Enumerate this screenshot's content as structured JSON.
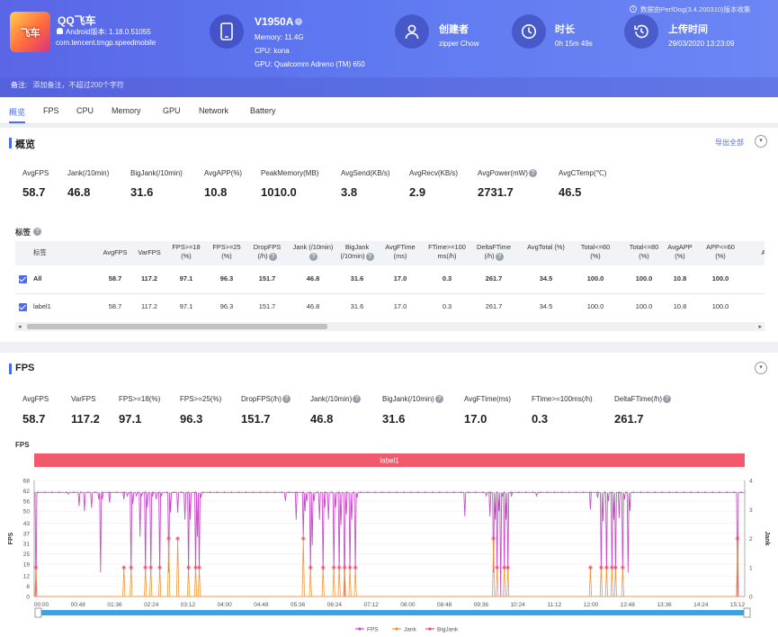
{
  "app": {
    "name": "QQ飞车",
    "android_version": "Android版本: 1.18.0.51055",
    "package": "com.tencent.tmgp.speedmobile",
    "icon_text": "飞车"
  },
  "device": {
    "model": "V1950A",
    "memory": "Memory: 11.4G",
    "cpu": "CPU: kona",
    "gpu": "GPU: Qualcomm Adreno (TM) 650"
  },
  "creator": {
    "label": "创建者",
    "value": "zipper Chow"
  },
  "duration": {
    "label": "时长",
    "value": "0h 15m 49s"
  },
  "upload": {
    "label": "上传时间",
    "value": "29/03/2020 13:23:09"
  },
  "source_note": "数据由PerfDog(3.4.200310)版本收集",
  "remarks": {
    "label": "备注:",
    "placeholder": "添加备注，不超过200个字符"
  },
  "tabs": [
    "概览",
    "FPS",
    "CPU",
    "Memory",
    "GPU",
    "Network",
    "Battery"
  ],
  "overview": {
    "title": "概览",
    "export_label": "导出全部",
    "metrics": [
      {
        "label": "AvgFPS",
        "value": "58.7"
      },
      {
        "label": "Jank(/10min)",
        "value": "46.8"
      },
      {
        "label": "BigJank(/10min)",
        "value": "31.6"
      },
      {
        "label": "AvgAPP(%)",
        "value": "10.8"
      },
      {
        "label": "PeakMemory(MB)",
        "value": "1010.0"
      },
      {
        "label": "AvgSend(KB/s)",
        "value": "3.8"
      },
      {
        "label": "AvgRecv(KB/s)",
        "value": "2.9"
      },
      {
        "label": "AvgPower(mW)",
        "value": "2731.7"
      },
      {
        "label": "AvgCTemp(℃)",
        "value": "46.5"
      }
    ],
    "labels_title": "标签",
    "table": {
      "headers": [
        "标签",
        "AvgFPS",
        "VarFPS",
        "FPS>=18 (%)",
        "FPS>=25 (%)",
        "DropFPS (/h)",
        "Jank (/10min)",
        "BigJank (/10min)",
        "AvgFTime (ms)",
        "FTime>=100 ms(/h)",
        "DeltaFTime (/h)",
        "AvgTotal (%)",
        "Total<=60 (%)",
        "Total<=80 (%)",
        "AvgAPP (%)",
        "APP<=60 (%)",
        "A"
      ],
      "rows": [
        {
          "label": "All",
          "values": [
            "58.7",
            "117.2",
            "97.1",
            "96.3",
            "151.7",
            "46.8",
            "31.6",
            "17.0",
            "0.3",
            "261.7",
            "34.5",
            "100.0",
            "100.0",
            "10.8",
            "100.0"
          ]
        },
        {
          "label": "label1",
          "values": [
            "58.7",
            "117.2",
            "97.1",
            "96.3",
            "151.7",
            "46.8",
            "31.6",
            "17.0",
            "0.3",
            "261.7",
            "34.5",
            "100.0",
            "100.0",
            "10.8",
            "100.0"
          ]
        }
      ]
    }
  },
  "fps_section": {
    "title": "FPS",
    "metrics": [
      {
        "label": "AvgFPS",
        "value": "58.7"
      },
      {
        "label": "VarFPS",
        "value": "117.2"
      },
      {
        "label": "FPS>=18(%)",
        "value": "97.1"
      },
      {
        "label": "FPS>=25(%)",
        "value": "96.3"
      },
      {
        "label": "DropFPS(/h)",
        "value": "151.7"
      },
      {
        "label": "Jank(/10min)",
        "value": "46.8"
      },
      {
        "label": "BigJank(/10min)",
        "value": "31.6"
      },
      {
        "label": "AvgFTime(ms)",
        "value": "17.0"
      },
      {
        "label": "FTime>=100ms(/h)",
        "value": "0.3"
      },
      {
        "label": "DeltaFTime(/h)",
        "value": "261.7"
      }
    ]
  },
  "chart_data": {
    "type": "line",
    "title": "FPS",
    "label_band": "label1",
    "ylabel": "FPS",
    "y2label": "Jank",
    "ylim": [
      0,
      68
    ],
    "y2lim": [
      0,
      4
    ],
    "yticks": [
      "0",
      "6",
      "12",
      "19",
      "25",
      "31",
      "37",
      "43",
      "50",
      "56",
      "62",
      "68"
    ],
    "y2ticks": [
      "0",
      "1",
      "2",
      "3",
      "4"
    ],
    "xticks": [
      "00:00",
      "00:48",
      "01:36",
      "02:24",
      "03:12",
      "04:00",
      "04:48",
      "05:36",
      "06:24",
      "07:12",
      "08:00",
      "08:48",
      "09:36",
      "10:24",
      "11:12",
      "12:00",
      "12:48",
      "13:36",
      "14:24",
      "15:12"
    ],
    "legend": [
      "FPS",
      "Jank",
      "BigJank"
    ],
    "colors": {
      "FPS": "#c94fc9",
      "Jank": "#f0963a",
      "BigJank": "#f0506e"
    },
    "series": [
      {
        "name": "FPS",
        "baseline": 61,
        "dips": [
          [
            0.5,
            0
          ],
          [
            9.5,
            60
          ],
          [
            12.5,
            53
          ],
          [
            14,
            50
          ],
          [
            16,
            52
          ],
          [
            18,
            57
          ],
          [
            18.5,
            14
          ],
          [
            19,
            57
          ],
          [
            21,
            55
          ],
          [
            25,
            57
          ],
          [
            26,
            59
          ],
          [
            27,
            14
          ],
          [
            27.5,
            54
          ],
          [
            28.5,
            59
          ],
          [
            29.5,
            35
          ],
          [
            30,
            59
          ],
          [
            31,
            14
          ],
          [
            31.5,
            52
          ],
          [
            32.5,
            14
          ],
          [
            33,
            59
          ],
          [
            34,
            57
          ],
          [
            35,
            14
          ],
          [
            35.5,
            59
          ],
          [
            37.5,
            14
          ],
          [
            38,
            49
          ],
          [
            40,
            49
          ],
          [
            42,
            45
          ],
          [
            43,
            14
          ],
          [
            43.5,
            45
          ],
          [
            45,
            14
          ],
          [
            45.5,
            35
          ],
          [
            46,
            14
          ],
          [
            46.5,
            58
          ],
          [
            70,
            56
          ],
          [
            73,
            45
          ],
          [
            75,
            35
          ],
          [
            75.5,
            50
          ],
          [
            76,
            56
          ],
          [
            77,
            14
          ],
          [
            77.5,
            30
          ],
          [
            78,
            56
          ],
          [
            79.5,
            45
          ],
          [
            80.5,
            14
          ],
          [
            81,
            52
          ],
          [
            82,
            45
          ],
          [
            83.5,
            14
          ],
          [
            84,
            52
          ],
          [
            85,
            14
          ],
          [
            85.5,
            42
          ],
          [
            86.5,
            0
          ],
          [
            87,
            48
          ],
          [
            88,
            14
          ],
          [
            88.5,
            45
          ],
          [
            89.5,
            14
          ],
          [
            90,
            58
          ],
          [
            120,
            47
          ],
          [
            126,
            59
          ],
          [
            127,
            47
          ],
          [
            128,
            14
          ],
          [
            128.5,
            45
          ],
          [
            129,
            14
          ],
          [
            129.5,
            50
          ],
          [
            130,
            0
          ],
          [
            130.5,
            59
          ],
          [
            131,
            14
          ],
          [
            131.5,
            45
          ],
          [
            132,
            14
          ],
          [
            133,
            59
          ],
          [
            140,
            59
          ],
          [
            155,
            51
          ],
          [
            157,
            58
          ],
          [
            158,
            14
          ],
          [
            158.5,
            44
          ],
          [
            159.5,
            14
          ],
          [
            160,
            56
          ],
          [
            161,
            14
          ],
          [
            161.5,
            45
          ],
          [
            162,
            14
          ],
          [
            163,
            46
          ],
          [
            164,
            14
          ],
          [
            164.5,
            57
          ],
          [
            165.5,
            14
          ],
          [
            166,
            50
          ],
          [
            196,
            0
          ],
          [
            197,
            61
          ]
        ]
      },
      {
        "name": "Jank",
        "points": [
          [
            0.5,
            1
          ],
          [
            25,
            1
          ],
          [
            27,
            1
          ],
          [
            31,
            1
          ],
          [
            32.5,
            1
          ],
          [
            35,
            1
          ],
          [
            37.5,
            2
          ],
          [
            40,
            2
          ],
          [
            43,
            1
          ],
          [
            45,
            1
          ],
          [
            46,
            1
          ],
          [
            75,
            2
          ],
          [
            77,
            1
          ],
          [
            80.5,
            1
          ],
          [
            83.5,
            1
          ],
          [
            85,
            1
          ],
          [
            86.5,
            1
          ],
          [
            88,
            1
          ],
          [
            89.5,
            1
          ],
          [
            128,
            2
          ],
          [
            129,
            1
          ],
          [
            131,
            1
          ],
          [
            132,
            1
          ],
          [
            155,
            1
          ],
          [
            158,
            1
          ],
          [
            159.5,
            1
          ],
          [
            161,
            1
          ],
          [
            162,
            1
          ],
          [
            164,
            1
          ],
          [
            196,
            2
          ]
        ]
      },
      {
        "name": "BigJank",
        "points": [
          [
            0.5,
            1
          ],
          [
            25,
            1
          ],
          [
            27,
            1
          ],
          [
            31,
            1
          ],
          [
            32.5,
            1
          ],
          [
            35,
            1
          ],
          [
            37.5,
            2
          ],
          [
            40,
            2
          ],
          [
            43,
            1
          ],
          [
            45,
            1
          ],
          [
            46,
            1
          ],
          [
            75,
            2
          ],
          [
            77,
            1
          ],
          [
            80.5,
            1
          ],
          [
            83.5,
            1
          ],
          [
            85,
            1
          ],
          [
            86.5,
            1
          ],
          [
            88,
            1
          ],
          [
            89.5,
            1
          ],
          [
            128,
            2
          ],
          [
            129,
            1
          ],
          [
            131,
            1
          ],
          [
            132,
            1
          ],
          [
            155,
            1
          ],
          [
            158,
            1
          ],
          [
            159.5,
            1
          ],
          [
            161,
            1
          ],
          [
            162,
            1
          ],
          [
            164,
            1
          ],
          [
            196,
            2
          ]
        ]
      }
    ],
    "x_range": [
      0,
      198
    ]
  }
}
